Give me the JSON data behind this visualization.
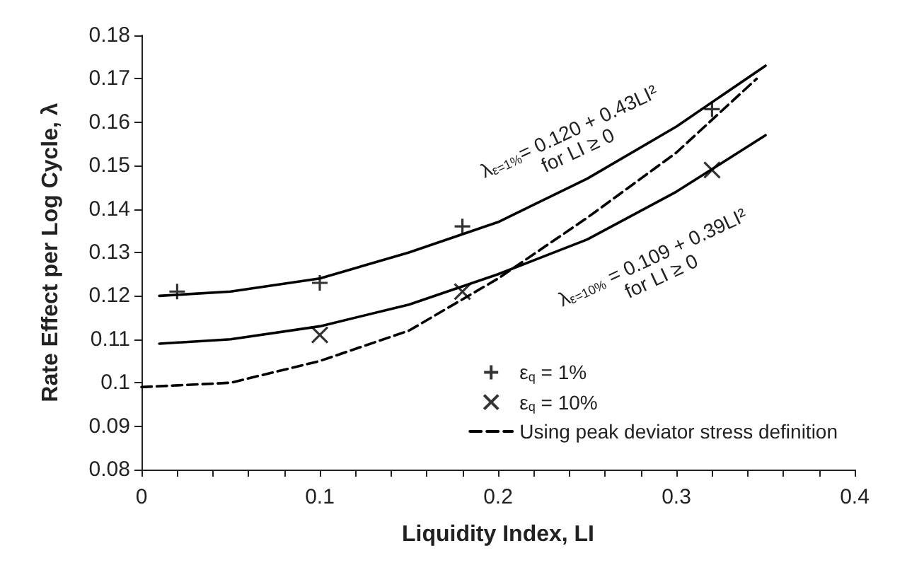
{
  "chart_data": {
    "type": "scatter",
    "xlabel": "Liquidity Index, LI",
    "ylabel": "Rate Effect per Log Cycle, λ",
    "xlim": [
      0,
      0.4
    ],
    "ylim": [
      0.08,
      0.18
    ],
    "xticks": [
      0,
      {
        "value": 0.02,
        "label": null
      },
      {
        "value": 0.04,
        "label": null
      },
      {
        "value": 0.06,
        "label": null
      },
      {
        "value": 0.08,
        "label": null
      },
      0.1,
      {
        "value": 0.12,
        "label": null
      },
      {
        "value": 0.14,
        "label": null
      },
      {
        "value": 0.16,
        "label": null
      },
      {
        "value": 0.18,
        "label": null
      },
      0.2,
      {
        "value": 0.22,
        "label": null
      },
      {
        "value": 0.24,
        "label": null
      },
      {
        "value": 0.26,
        "label": null
      },
      {
        "value": 0.28,
        "label": null
      },
      0.3,
      {
        "value": 0.32,
        "label": null
      },
      {
        "value": 0.34,
        "label": null
      },
      {
        "value": 0.36,
        "label": null
      },
      {
        "value": 0.38,
        "label": null
      },
      0.4
    ],
    "yticks": [
      0.08,
      0.09,
      0.1,
      0.11,
      0.12,
      0.13,
      0.14,
      0.15,
      0.16,
      0.17,
      0.18
    ],
    "grid": false,
    "legend": "bottom right",
    "series": [
      {
        "name": "ε$_{q}$ = 1%",
        "marker": "plus",
        "color": "#000000",
        "x": [
          0.02,
          0.1,
          0.18,
          0.32
        ],
        "values": [
          0.121,
          0.123,
          0.136,
          0.163
        ]
      },
      {
        "name": "ε$_{q}$ = 10%",
        "marker": "cross",
        "color": "#000000",
        "x": [
          0.1,
          0.18,
          0.32
        ],
        "values": [
          0.111,
          0.121,
          0.149
        ]
      },
      {
        "name": "Using peak deviator stress definition",
        "type": "line",
        "line_style": "dashed",
        "marker": "none",
        "color": "#000000",
        "x": [
          0,
          0.05,
          0.1,
          0.15,
          0.2,
          0.25,
          0.3,
          0.345
        ],
        "values": [
          0.099,
          0.1,
          0.105,
          0.112,
          0.124,
          0.138,
          0.153,
          0.17
        ]
      },
      {
        "type": "line",
        "line_style": "solid",
        "marker": "none",
        "color": "#000000",
        "x": [
          0.01,
          0.05,
          0.1,
          0.15,
          0.2,
          0.25,
          0.3,
          0.35
        ],
        "values": [
          0.12,
          0.121,
          0.124,
          0.13,
          0.137,
          0.147,
          0.159,
          0.173
        ]
      },
      {
        "type": "line",
        "line_style": "solid",
        "marker": "none",
        "color": "#000000",
        "x": [
          0.01,
          0.05,
          0.1,
          0.15,
          0.2,
          0.25,
          0.3,
          0.35
        ],
        "values": [
          0.109,
          0.11,
          0.113,
          0.118,
          0.125,
          0.133,
          0.144,
          0.157
        ]
      }
    ],
    "annotations": [
      "λ$_{ε=1%}$= 0.120 + 0.43LI²\nfor LI ≥ 0",
      "λ$_{ε=10%}$ = 0.109 + 0.39LI²\nfor LI ≥ 0"
    ]
  }
}
